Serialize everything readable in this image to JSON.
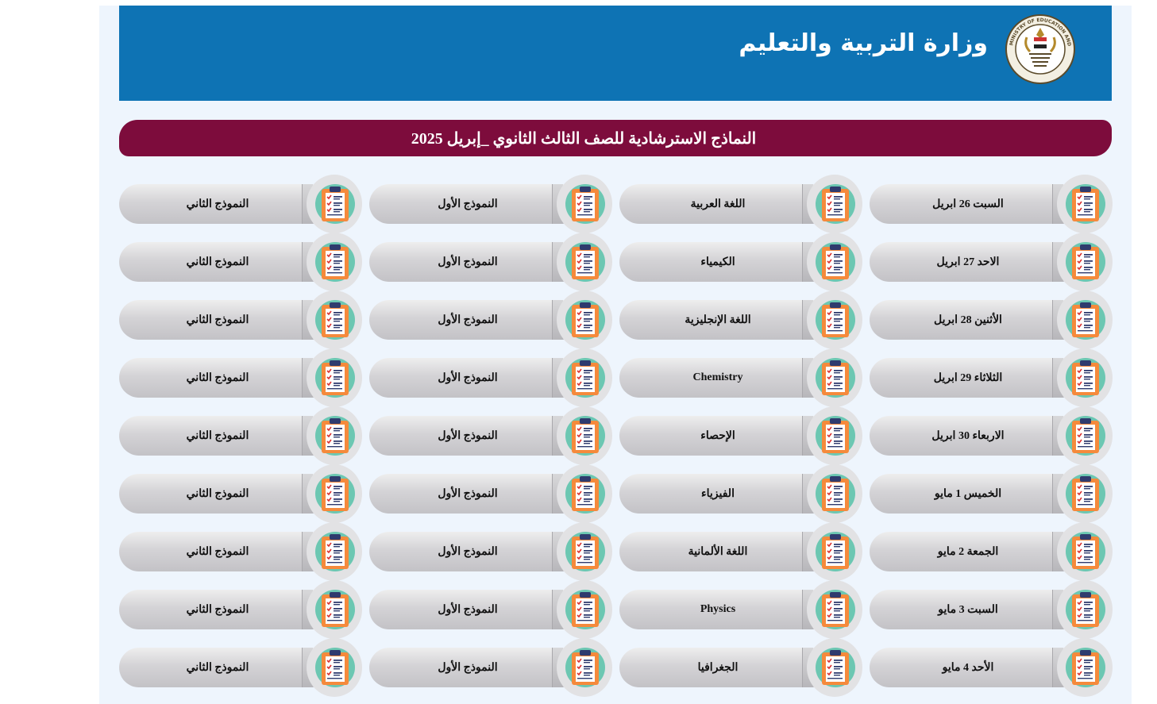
{
  "header": {
    "ministry_name": "وزارة التربية والتعليم",
    "seal_caption": "MINISTRY OF EDUCATION AND TECHNICAL EDUCATION",
    "seal_caption_ar": "وزارة التربية والتعليم والتعليم الفني",
    "banner_color": "#0e73b4"
  },
  "section": {
    "title": "النماذج الاسترشادية للصف الثالث الثانوي _إبريل 2025",
    "title_bar_color": "#7d0c3c"
  },
  "icons": {
    "exam_model": "clipboard-checklist-icon",
    "colors": {
      "disc": "#6cc7b2",
      "clipboard": "#f58a3c",
      "paper": "#ffffff",
      "check": "#d93030",
      "lines": "#2f3b6e"
    }
  },
  "schedule": [
    {
      "date": "السبت 26 ابريل",
      "subject": "اللغة العربية",
      "model_1": "النموذج الأول",
      "model_2": "النموذج الثاني"
    },
    {
      "date": "الاحد 27 ابريل",
      "subject": "الكيمياء",
      "model_1": "النموذج الأول",
      "model_2": "النموذج الثاني"
    },
    {
      "date": "الأثنين   28 ابريل",
      "subject": "اللغة الإنجليزية",
      "model_1": "النموذج الأول",
      "model_2": "النموذج الثاني"
    },
    {
      "date": "الثلاثاء   29 ابريل",
      "subject": "Chemistry",
      "model_1": "النموذج الأول",
      "model_2": "النموذج الثاني"
    },
    {
      "date": "الاربعاء 30 ابريل",
      "subject": "الإحصاء",
      "model_1": "النموذج الأول",
      "model_2": "النموذج الثاني"
    },
    {
      "date": "الخميس 1 مايو",
      "subject": "الفيزياء",
      "model_1": "النموذج الأول",
      "model_2": "النموذج الثاني"
    },
    {
      "date": "الجمعة 2 مايو",
      "subject": "اللغة الألمانية",
      "model_1": "النموذج الأول",
      "model_2": "النموذج الثاني"
    },
    {
      "date": "السبت 3 مايو",
      "subject": "Physics",
      "model_1": "النموذج الأول",
      "model_2": "النموذج الثاني"
    },
    {
      "date": "الأحد 4 مايو",
      "subject": "الجغرافيا",
      "model_1": "النموذج الأول",
      "model_2": "النموذج الثاني"
    }
  ]
}
